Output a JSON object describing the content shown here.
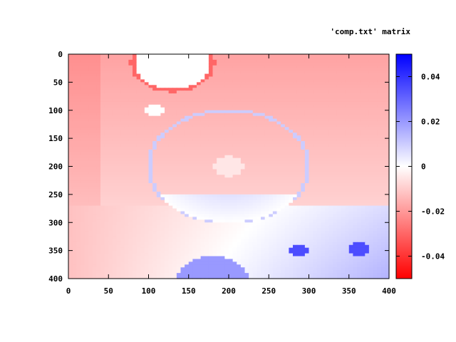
{
  "chart_data": {
    "type": "heatmap",
    "title": "'comp.txt' matrix",
    "xlabel": "",
    "ylabel": "",
    "xlim": [
      0,
      400
    ],
    "ylim": [
      400,
      0
    ],
    "x_ticks": [
      0,
      50,
      100,
      150,
      200,
      250,
      300,
      350,
      400
    ],
    "y_ticks": [
      0,
      50,
      100,
      150,
      200,
      250,
      300,
      350,
      400
    ],
    "x_tick_labels": [
      "0",
      "50",
      "100",
      "150",
      "200",
      "250",
      "300",
      "350",
      "400"
    ],
    "y_tick_labels": [
      "0",
      "50",
      "100",
      "150",
      "200",
      "250",
      "300",
      "350",
      "400"
    ],
    "colorbar": {
      "range": [
        -0.05,
        0.05
      ],
      "ticks": [
        0.04,
        0.02,
        0,
        -0.02,
        -0.04
      ],
      "tick_labels": [
        "0.04",
        "0.02",
        "0",
        "-0.02",
        "-0.04"
      ],
      "low_color": "#ff0000",
      "mid_color": "#ffffff",
      "high_color": "#0000ff"
    },
    "features": [
      {
        "kind": "blob",
        "cx": 130,
        "cy": 15,
        "r": 50,
        "value": 0.0,
        "rim": -0.03
      },
      {
        "kind": "blob",
        "cx": 108,
        "cy": 100,
        "r": 12,
        "value": 0.0
      },
      {
        "kind": "ring",
        "cx": 200,
        "cy": 200,
        "r": 100,
        "rim": 0.01
      },
      {
        "kind": "blob",
        "cx": 200,
        "cy": 200,
        "r": 18,
        "value": -0.005
      },
      {
        "kind": "blob",
        "cx": 288,
        "cy": 350,
        "r": 12,
        "value": 0.035
      },
      {
        "kind": "blob",
        "cx": 362,
        "cy": 347,
        "r": 12,
        "value": 0.035
      },
      {
        "kind": "blob",
        "cx": 180,
        "cy": 405,
        "r": 45,
        "value": 0.02
      }
    ]
  }
}
